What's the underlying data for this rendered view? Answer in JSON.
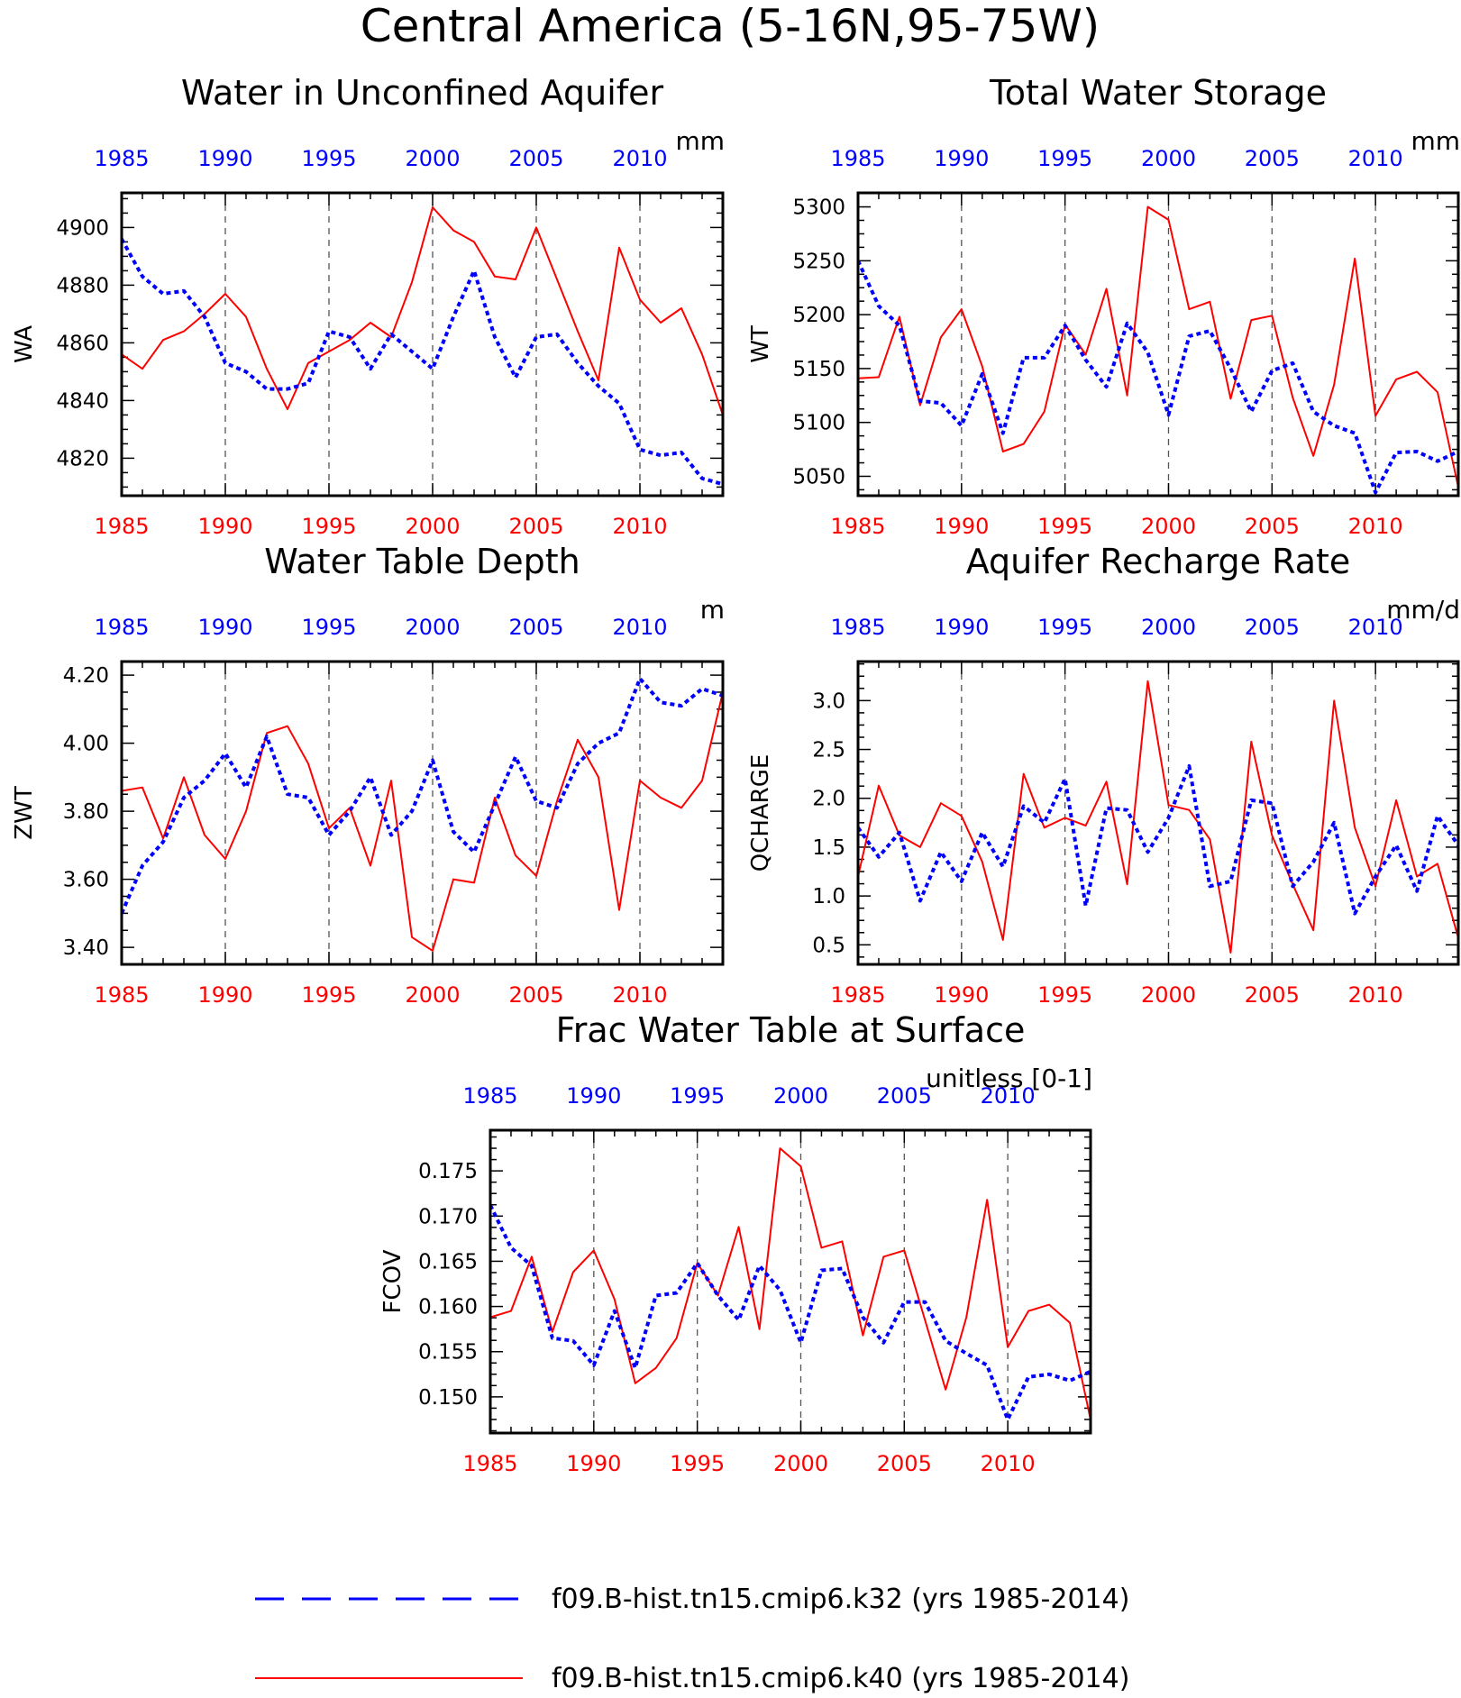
{
  "figure_title": "Central America (5-16N,95-75W)",
  "legend": {
    "series": [
      {
        "label": "f09.B-hist.tn15.cmip6.k32 (yrs 1985-2014)",
        "color": "#0000ff",
        "style": "dashed"
      },
      {
        "label": "f09.B-hist.tn15.cmip6.k40 (yrs 1985-2014)",
        "color": "#ff0000",
        "style": "solid"
      }
    ]
  },
  "chart_data": [
    {
      "id": "wa",
      "type": "line",
      "title": "Water in Unconfined Aquifer",
      "units": "mm",
      "ylabel": "WA",
      "xlim": [
        1985,
        2014
      ],
      "ylim": [
        4807,
        4912
      ],
      "yticks": [
        4820,
        4840,
        4860,
        4880,
        4900
      ],
      "ytick_labels": [
        "4820",
        "4840",
        "4860",
        "4880",
        "4900"
      ],
      "xticks": [
        1985,
        1990,
        1995,
        2000,
        2005,
        2010
      ],
      "xtick_labels": [
        "1985",
        "1990",
        "1995",
        "2000",
        "2005",
        "2010"
      ],
      "vgrid": [
        1990,
        1995,
        2000,
        2005,
        2010
      ],
      "x": [
        1985,
        1986,
        1987,
        1988,
        1989,
        1990,
        1991,
        1992,
        1993,
        1994,
        1995,
        1996,
        1997,
        1998,
        1999,
        2000,
        2001,
        2002,
        2003,
        2004,
        2005,
        2006,
        2007,
        2008,
        2009,
        2010,
        2011,
        2012,
        2013,
        2014
      ],
      "series": [
        {
          "name": "f09.B-hist.tn15.cmip6.k32",
          "color": "#0000ff",
          "style": "dashed",
          "values": [
            4896,
            4883,
            4877,
            4878,
            4869,
            4853,
            4850,
            4844,
            4844,
            4846,
            4864,
            4862,
            4851,
            4863,
            4857,
            4851,
            4869,
            4885,
            4862,
            4848,
            4862,
            4863,
            4853,
            4845,
            4839,
            4823,
            4821,
            4822,
            4813,
            4811
          ]
        },
        {
          "name": "f09.B-hist.tn15.cmip6.k40",
          "color": "#ff0000",
          "style": "solid",
          "values": [
            4856,
            4851,
            4861,
            4864,
            4870,
            4877,
            4869,
            4851,
            4837,
            4853,
            4857,
            4861,
            4867,
            4862,
            4881,
            4907,
            4899,
            4895,
            4883,
            4882,
            4900,
            4882,
            4864,
            4847,
            4893,
            4875,
            4867,
            4872,
            4856,
            4835
          ]
        }
      ]
    },
    {
      "id": "wt",
      "type": "line",
      "title": "Total Water Storage",
      "units": "mm",
      "ylabel": "WT",
      "xlim": [
        1985,
        2014
      ],
      "ylim": [
        5032,
        5313
      ],
      "yticks": [
        5050,
        5100,
        5150,
        5200,
        5250,
        5300
      ],
      "ytick_labels": [
        "5050",
        "5100",
        "5150",
        "5200",
        "5250",
        "5300"
      ],
      "xticks": [
        1985,
        1990,
        1995,
        2000,
        2005,
        2010
      ],
      "xtick_labels": [
        "1985",
        "1990",
        "1995",
        "2000",
        "2005",
        "2010"
      ],
      "vgrid": [
        1990,
        1995,
        2000,
        2005,
        2010
      ],
      "x": [
        1985,
        1986,
        1987,
        1988,
        1989,
        1990,
        1991,
        1992,
        1993,
        1994,
        1995,
        1996,
        1997,
        1998,
        1999,
        2000,
        2001,
        2002,
        2003,
        2004,
        2005,
        2006,
        2007,
        2008,
        2009,
        2010,
        2011,
        2012,
        2013,
        2014
      ],
      "series": [
        {
          "name": "f09.B-hist.tn15.cmip6.k32",
          "color": "#0000ff",
          "style": "dashed",
          "values": [
            5250,
            5208,
            5190,
            5120,
            5118,
            5097,
            5145,
            5090,
            5160,
            5160,
            5190,
            5158,
            5133,
            5192,
            5165,
            5107,
            5180,
            5185,
            5150,
            5110,
            5148,
            5155,
            5110,
            5097,
            5090,
            5035,
            5072,
            5073,
            5064,
            5073
          ]
        },
        {
          "name": "f09.B-hist.tn15.cmip6.k40",
          "color": "#ff0000",
          "style": "solid",
          "values": [
            5141,
            5142,
            5198,
            5116,
            5179,
            5205,
            5152,
            5073,
            5080,
            5110,
            5191,
            5163,
            5224,
            5125,
            5300,
            5288,
            5205,
            5212,
            5122,
            5195,
            5199,
            5123,
            5069,
            5135,
            5252,
            5106,
            5140,
            5147,
            5128,
            5040
          ]
        }
      ]
    },
    {
      "id": "zwt",
      "type": "line",
      "title": "Water Table Depth",
      "units": "m",
      "ylabel": "ZWT",
      "xlim": [
        1985,
        2014
      ],
      "ylim": [
        3.35,
        4.24
      ],
      "yticks": [
        3.4,
        3.6,
        3.8,
        4.0,
        4.2
      ],
      "ytick_labels": [
        "3.40",
        "3.60",
        "3.80",
        "4.00",
        "4.20"
      ],
      "xticks": [
        1985,
        1990,
        1995,
        2000,
        2005,
        2010
      ],
      "xtick_labels": [
        "1985",
        "1990",
        "1995",
        "2000",
        "2005",
        "2010"
      ],
      "vgrid": [
        1990,
        1995,
        2000,
        2005,
        2010
      ],
      "x": [
        1985,
        1986,
        1987,
        1988,
        1989,
        1990,
        1991,
        1992,
        1993,
        1994,
        1995,
        1996,
        1997,
        1998,
        1999,
        2000,
        2001,
        2002,
        2003,
        2004,
        2005,
        2006,
        2007,
        2008,
        2009,
        2010,
        2011,
        2012,
        2013,
        2014
      ],
      "series": [
        {
          "name": "f09.B-hist.tn15.cmip6.k32",
          "color": "#0000ff",
          "style": "dashed",
          "values": [
            3.5,
            3.64,
            3.71,
            3.84,
            3.89,
            3.97,
            3.87,
            4.02,
            3.85,
            3.84,
            3.73,
            3.8,
            3.9,
            3.73,
            3.8,
            3.95,
            3.74,
            3.68,
            3.82,
            3.96,
            3.83,
            3.81,
            3.94,
            4.0,
            4.03,
            4.19,
            4.12,
            4.11,
            4.16,
            4.14
          ]
        },
        {
          "name": "f09.B-hist.tn15.cmip6.k40",
          "color": "#ff0000",
          "style": "solid",
          "values": [
            3.86,
            3.87,
            3.72,
            3.9,
            3.73,
            3.66,
            3.8,
            4.03,
            4.05,
            3.94,
            3.75,
            3.81,
            3.64,
            3.89,
            3.43,
            3.39,
            3.6,
            3.59,
            3.84,
            3.67,
            3.61,
            3.83,
            4.01,
            3.9,
            3.51,
            3.89,
            3.84,
            3.81,
            3.89,
            4.15
          ]
        }
      ]
    },
    {
      "id": "qcharge",
      "type": "line",
      "title": "Aquifer Recharge Rate",
      "units": "mm/d",
      "ylabel": "QCHARGE",
      "xlim": [
        1985,
        2014
      ],
      "ylim": [
        0.3,
        3.4
      ],
      "yticks": [
        0.5,
        1.0,
        1.5,
        2.0,
        2.5,
        3.0
      ],
      "ytick_labels": [
        "0.5",
        "1.0",
        "1.5",
        "2.0",
        "2.5",
        "3.0"
      ],
      "xticks": [
        1985,
        1990,
        1995,
        2000,
        2005,
        2010
      ],
      "xtick_labels": [
        "1985",
        "1990",
        "1995",
        "2000",
        "2005",
        "2010"
      ],
      "vgrid": [
        1990,
        1995,
        2000,
        2005,
        2010
      ],
      "x": [
        1985,
        1986,
        1987,
        1988,
        1989,
        1990,
        1991,
        1992,
        1993,
        1994,
        1995,
        1996,
        1997,
        1998,
        1999,
        2000,
        2001,
        2002,
        2003,
        2004,
        2005,
        2006,
        2007,
        2008,
        2009,
        2010,
        2011,
        2012,
        2013,
        2014
      ],
      "series": [
        {
          "name": "f09.B-hist.tn15.cmip6.k32",
          "color": "#0000ff",
          "style": "dashed",
          "values": [
            1.7,
            1.4,
            1.65,
            0.95,
            1.45,
            1.15,
            1.65,
            1.3,
            1.92,
            1.75,
            2.2,
            0.9,
            1.9,
            1.88,
            1.45,
            1.8,
            2.33,
            1.1,
            1.15,
            1.98,
            1.95,
            1.1,
            1.35,
            1.75,
            0.82,
            1.2,
            1.52,
            1.05,
            1.82,
            1.52
          ]
        },
        {
          "name": "f09.B-hist.tn15.cmip6.k40",
          "color": "#ff0000",
          "style": "solid",
          "values": [
            1.2,
            2.13,
            1.62,
            1.5,
            1.95,
            1.82,
            1.35,
            0.55,
            2.25,
            1.7,
            1.8,
            1.72,
            2.17,
            1.12,
            3.2,
            1.93,
            1.88,
            1.58,
            0.42,
            2.58,
            1.62,
            1.12,
            0.65,
            3.0,
            1.7,
            1.1,
            1.98,
            1.2,
            1.33,
            0.57
          ]
        }
      ]
    },
    {
      "id": "fcov",
      "type": "line",
      "title": "Frac Water Table at Surface",
      "units": "unitless [0-1]",
      "ylabel": "FCOV",
      "xlim": [
        1985,
        2014
      ],
      "ylim": [
        0.146,
        0.1795
      ],
      "yticks": [
        0.15,
        0.155,
        0.16,
        0.165,
        0.17,
        0.175
      ],
      "ytick_labels": [
        "0.150",
        "0.155",
        "0.160",
        "0.165",
        "0.170",
        "0.175"
      ],
      "xticks": [
        1985,
        1990,
        1995,
        2000,
        2005,
        2010
      ],
      "xtick_labels": [
        "1985",
        "1990",
        "1995",
        "2000",
        "2005",
        "2010"
      ],
      "vgrid": [
        1990,
        1995,
        2000,
        2005,
        2010
      ],
      "x": [
        1985,
        1986,
        1987,
        1988,
        1989,
        1990,
        1991,
        1992,
        1993,
        1994,
        1995,
        1996,
        1997,
        1998,
        1999,
        2000,
        2001,
        2002,
        2003,
        2004,
        2005,
        2006,
        2007,
        2008,
        2009,
        2010,
        2011,
        2012,
        2013,
        2014
      ],
      "series": [
        {
          "name": "f09.B-hist.tn15.cmip6.k32",
          "color": "#0000ff",
          "style": "dashed",
          "values": [
            0.1712,
            0.1665,
            0.1645,
            0.1565,
            0.1562,
            0.1535,
            0.1595,
            0.1532,
            0.1612,
            0.1615,
            0.1648,
            0.1612,
            0.1585,
            0.1645,
            0.1618,
            0.156,
            0.164,
            0.1642,
            0.1588,
            0.156,
            0.1605,
            0.1605,
            0.1562,
            0.1548,
            0.1535,
            0.1475,
            0.1522,
            0.1525,
            0.1518,
            0.1528
          ]
        },
        {
          "name": "f09.B-hist.tn15.cmip6.k40",
          "color": "#ff0000",
          "style": "solid",
          "values": [
            0.1588,
            0.1595,
            0.1655,
            0.1572,
            0.1638,
            0.1662,
            0.1608,
            0.1515,
            0.1532,
            0.1565,
            0.1648,
            0.1612,
            0.1688,
            0.1575,
            0.1775,
            0.1755,
            0.1665,
            0.1672,
            0.1568,
            0.1655,
            0.1662,
            0.1585,
            0.1508,
            0.1588,
            0.1718,
            0.1555,
            0.1595,
            0.1602,
            0.1582,
            0.1475
          ]
        }
      ]
    }
  ]
}
